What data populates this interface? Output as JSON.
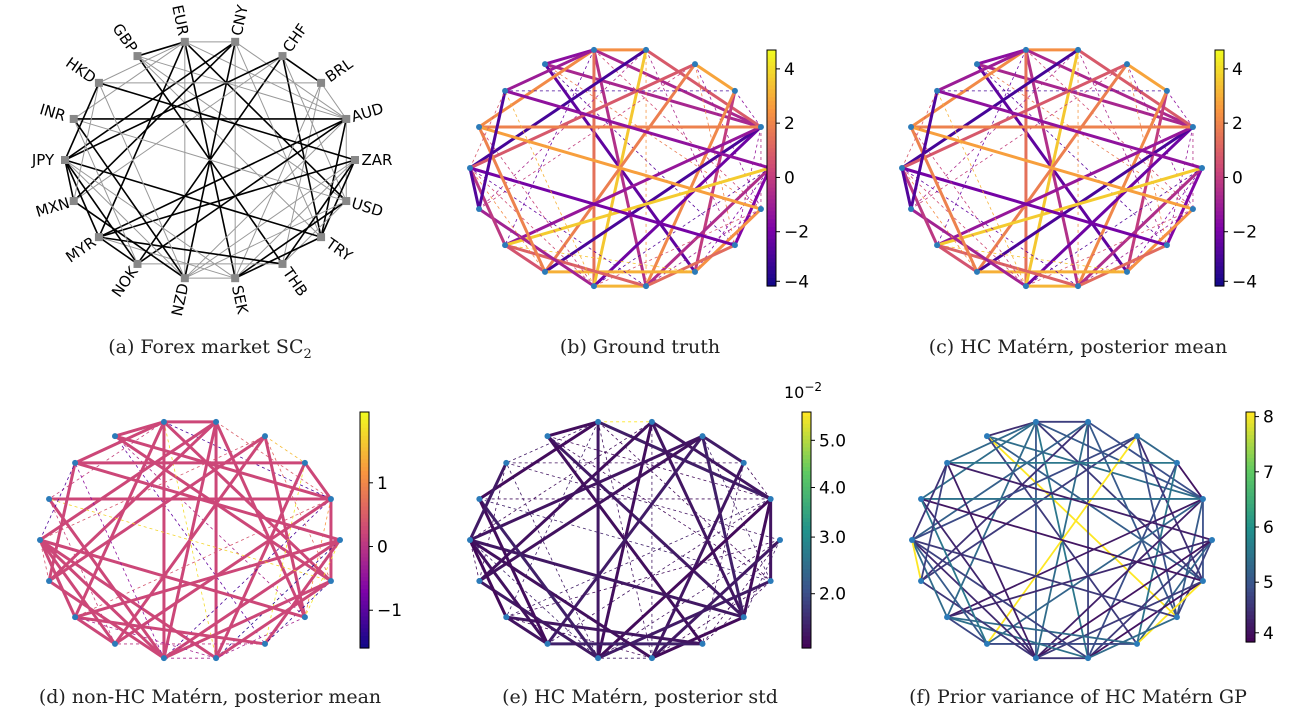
{
  "captions": {
    "a": {
      "text": "(a) Forex market SC",
      "sub": "2"
    },
    "b": "(b) Ground truth",
    "c": "(c) HC Matérn, posterior mean",
    "d": "(d) non-HC Matérn, posterior mean",
    "e": "(e) HC Matérn, posterior std",
    "f": "(f) Prior variance of HC Matérn GP"
  },
  "currencies": [
    "GBP",
    "EUR",
    "CNY",
    "CHF",
    "BRL",
    "AUD",
    "ZAR",
    "USD",
    "TRY",
    "THB",
    "SEK",
    "NZD",
    "NOK",
    "MYR",
    "MXN",
    "JPY",
    "INR",
    "HKD"
  ],
  "colorbars": {
    "b": {
      "colormap": "plasma",
      "ticks": [
        "4",
        "2",
        "0",
        "−2",
        "−4"
      ]
    },
    "c": {
      "colormap": "plasma",
      "ticks": [
        "4",
        "2",
        "0",
        "−2",
        "−4"
      ]
    },
    "d": {
      "colormap": "plasma",
      "ticks": [
        "1",
        "0",
        "−1"
      ]
    },
    "e": {
      "colormap": "viridis",
      "ticks": [
        "5.0",
        "4.0",
        "3.0",
        "2.0"
      ],
      "exponent": "10",
      "exponent_power": "−2"
    },
    "f": {
      "colormap": "viridis",
      "ticks": [
        "8",
        "7",
        "6",
        "5",
        "4"
      ]
    }
  },
  "colors": {
    "node": "#2b7bb9",
    "node_a": "#888888",
    "edge_black": "#000000",
    "edge_gray": "#999999"
  }
}
